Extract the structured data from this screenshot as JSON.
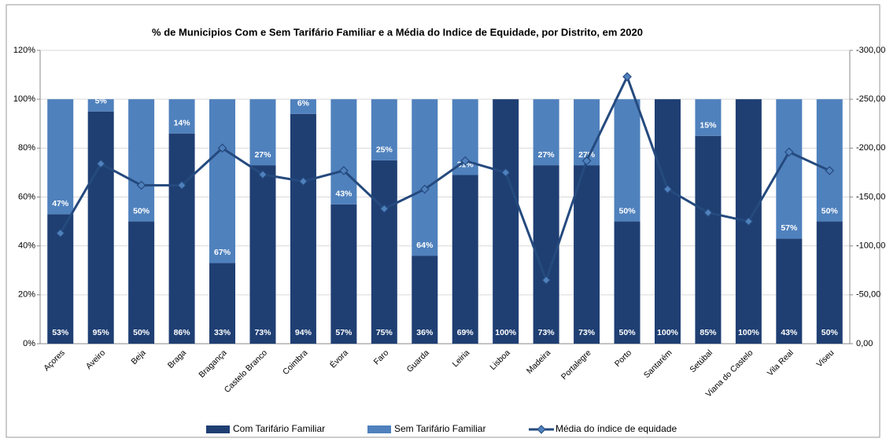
{
  "chart_data": {
    "type": "bar",
    "stacked": true,
    "title": "% de Municipios Com e Sem Tarifário Familiar e a Média do Indice de Equidade, por Distrito, em 2020",
    "categories": [
      "Açores",
      "Aveiro",
      "Beja",
      "Braga",
      "Bragança",
      "Castelo Branco",
      "Coimbra",
      "Évora",
      "Faro",
      "Guarda",
      "Leiria",
      "Lisboa",
      "Madeira",
      "Portalegre",
      "Porto",
      "Santarém",
      "Setúbal",
      "Viana do Castelo",
      "Vila Real",
      "Viseu"
    ],
    "series": [
      {
        "name": "Com Tarifário Familiar",
        "type": "bar",
        "color": "#1f3f73",
        "values": [
          53,
          95,
          50,
          86,
          33,
          73,
          94,
          57,
          75,
          36,
          69,
          100,
          73,
          73,
          50,
          100,
          85,
          100,
          43,
          50
        ],
        "value_labels": [
          "53%",
          "95%",
          "50%",
          "86%",
          "33%",
          "73%",
          "94%",
          "57%",
          "75%",
          "36%",
          "69%",
          "100%",
          "73%",
          "73%",
          "50%",
          "100%",
          "85%",
          "100%",
          "43%",
          "50%"
        ]
      },
      {
        "name": "Sem Tarifário Familiar",
        "type": "bar",
        "color": "#4f81bd",
        "values": [
          47,
          5,
          50,
          14,
          67,
          27,
          6,
          43,
          25,
          64,
          31,
          0,
          27,
          27,
          50,
          0,
          15,
          0,
          57,
          50
        ],
        "value_labels": [
          "47%",
          "5%",
          "50%",
          "14%",
          "67%",
          "27%",
          "6%",
          "43%",
          "25%",
          "64%",
          "31%",
          null,
          "27%",
          "27%",
          "50%",
          null,
          "15%",
          null,
          "57%",
          "50%"
        ]
      },
      {
        "name": "Média do índice de equidade",
        "type": "line",
        "axis": "y2",
        "color": "#254a7e",
        "marker_color": "#4f81bd",
        "values": [
          -113,
          -184,
          -162,
          -162,
          -200,
          -173,
          -166,
          -177,
          -138,
          -158,
          -187,
          -175,
          -65,
          -187,
          -273,
          -158,
          -134,
          -125,
          -196,
          -177
        ]
      }
    ],
    "ylim": [
      0,
      120
    ],
    "yticks": [
      {
        "value": 0,
        "label": "0%"
      },
      {
        "value": 20,
        "label": "20%"
      },
      {
        "value": 40,
        "label": "40%"
      },
      {
        "value": 60,
        "label": "60%"
      },
      {
        "value": 80,
        "label": "80%"
      },
      {
        "value": 100,
        "label": "100%"
      },
      {
        "value": 120,
        "label": "120%"
      }
    ],
    "y2lim": [
      0,
      -300
    ],
    "y2ticks": [
      {
        "value": 0,
        "label": "0,00"
      },
      {
        "value": -50,
        "label": "-50,00"
      },
      {
        "value": -100,
        "label": "-100,00"
      },
      {
        "value": -150,
        "label": "-150,00"
      },
      {
        "value": -200,
        "label": "-200,00"
      },
      {
        "value": -250,
        "label": "-250,00"
      },
      {
        "value": -300,
        "label": "-300,00"
      }
    ],
    "grid": true,
    "legend": "bottom"
  }
}
